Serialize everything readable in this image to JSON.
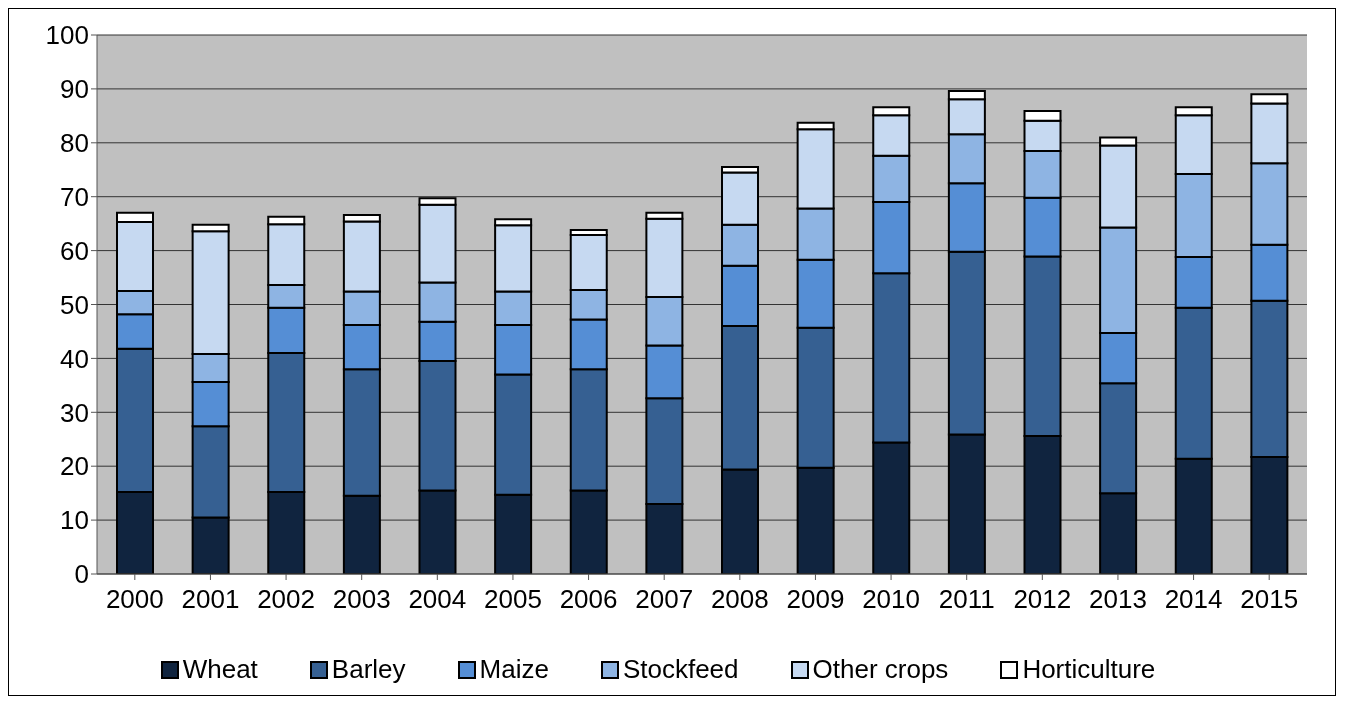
{
  "chart_data": {
    "type": "bar",
    "stacked": true,
    "categories": [
      "2000",
      "2001",
      "2002",
      "2003",
      "2004",
      "2005",
      "2006",
      "2007",
      "2008",
      "2009",
      "2010",
      "2011",
      "2012",
      "2013",
      "2014",
      "2015"
    ],
    "series": [
      {
        "name": "Wheat",
        "color": "#10243f",
        "values": [
          15.2,
          10.5,
          15.2,
          14.5,
          15.5,
          14.7,
          15.5,
          13.0,
          19.4,
          19.7,
          24.4,
          25.9,
          25.6,
          15.0,
          21.4,
          21.7
        ]
      },
      {
        "name": "Barley",
        "color": "#366092",
        "values": [
          26.6,
          16.9,
          25.8,
          23.5,
          24.0,
          22.3,
          22.5,
          19.6,
          26.6,
          26.0,
          31.4,
          33.9,
          33.3,
          20.4,
          28.0,
          29.0
        ]
      },
      {
        "name": "Maize",
        "color": "#558ed5",
        "values": [
          6.4,
          8.2,
          8.4,
          8.2,
          7.3,
          9.2,
          9.2,
          9.8,
          11.2,
          12.6,
          13.2,
          12.7,
          10.9,
          9.3,
          9.4,
          10.4
        ]
      },
      {
        "name": "Stockfeed",
        "color": "#8eb4e3",
        "values": [
          4.3,
          5.2,
          4.2,
          6.2,
          7.3,
          6.2,
          5.5,
          9.0,
          7.6,
          9.5,
          8.6,
          9.1,
          8.7,
          19.6,
          15.4,
          15.1
        ]
      },
      {
        "name": "Other crops",
        "color": "#c6d9f1",
        "values": [
          12.8,
          22.8,
          11.3,
          13.0,
          14.4,
          12.3,
          10.2,
          14.5,
          9.7,
          14.7,
          7.5,
          6.5,
          5.6,
          15.2,
          10.9,
          11.1
        ]
      },
      {
        "name": "Horticulture",
        "color": "#ffffff",
        "values": [
          1.7,
          1.2,
          1.4,
          1.2,
          1.2,
          1.1,
          0.9,
          1.1,
          1.0,
          1.2,
          1.5,
          1.5,
          1.8,
          1.5,
          1.5,
          1.7
        ]
      }
    ],
    "ylim": [
      0,
      100
    ],
    "yticks": [
      0,
      10,
      20,
      30,
      40,
      50,
      60,
      70,
      80,
      90,
      100
    ],
    "grid": "y",
    "legend": "bottom"
  }
}
